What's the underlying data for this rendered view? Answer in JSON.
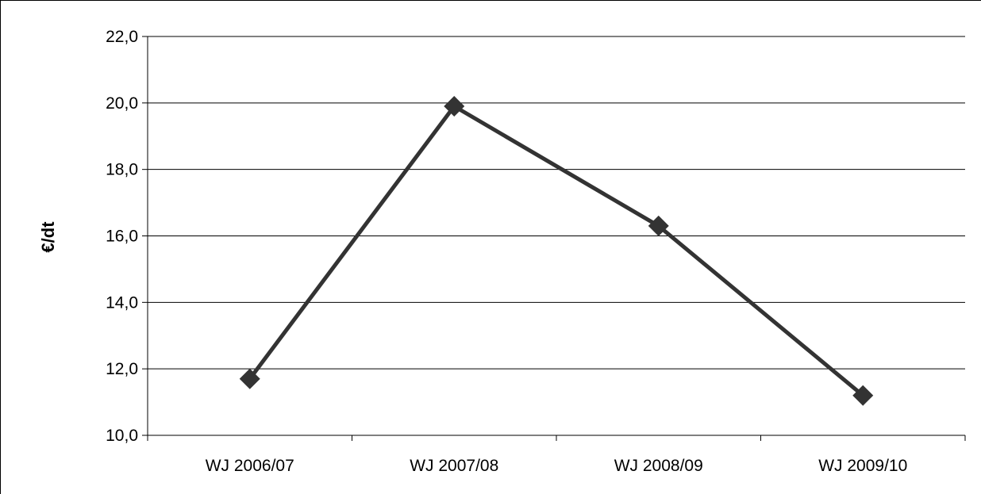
{
  "chart_data": {
    "type": "line",
    "title": "",
    "xlabel": "",
    "ylabel": "€/dt",
    "categories": [
      "WJ 2006/07",
      "WJ 2007/08",
      "WJ 2008/09",
      "WJ 2009/10"
    ],
    "series": [
      {
        "values": [
          11.7,
          19.9,
          16.3,
          11.2
        ]
      }
    ],
    "ylim": [
      10,
      22
    ],
    "yticks": [
      10,
      12,
      14,
      16,
      18,
      20,
      22
    ],
    "ytick_labels": [
      "10,0",
      "12,0",
      "14,0",
      "16,0",
      "18,0",
      "20,0",
      "22,0"
    ],
    "grid": "horizontal",
    "legend": "none",
    "marker": "diamond",
    "line_color": "#333333",
    "marker_color": "#333333"
  }
}
